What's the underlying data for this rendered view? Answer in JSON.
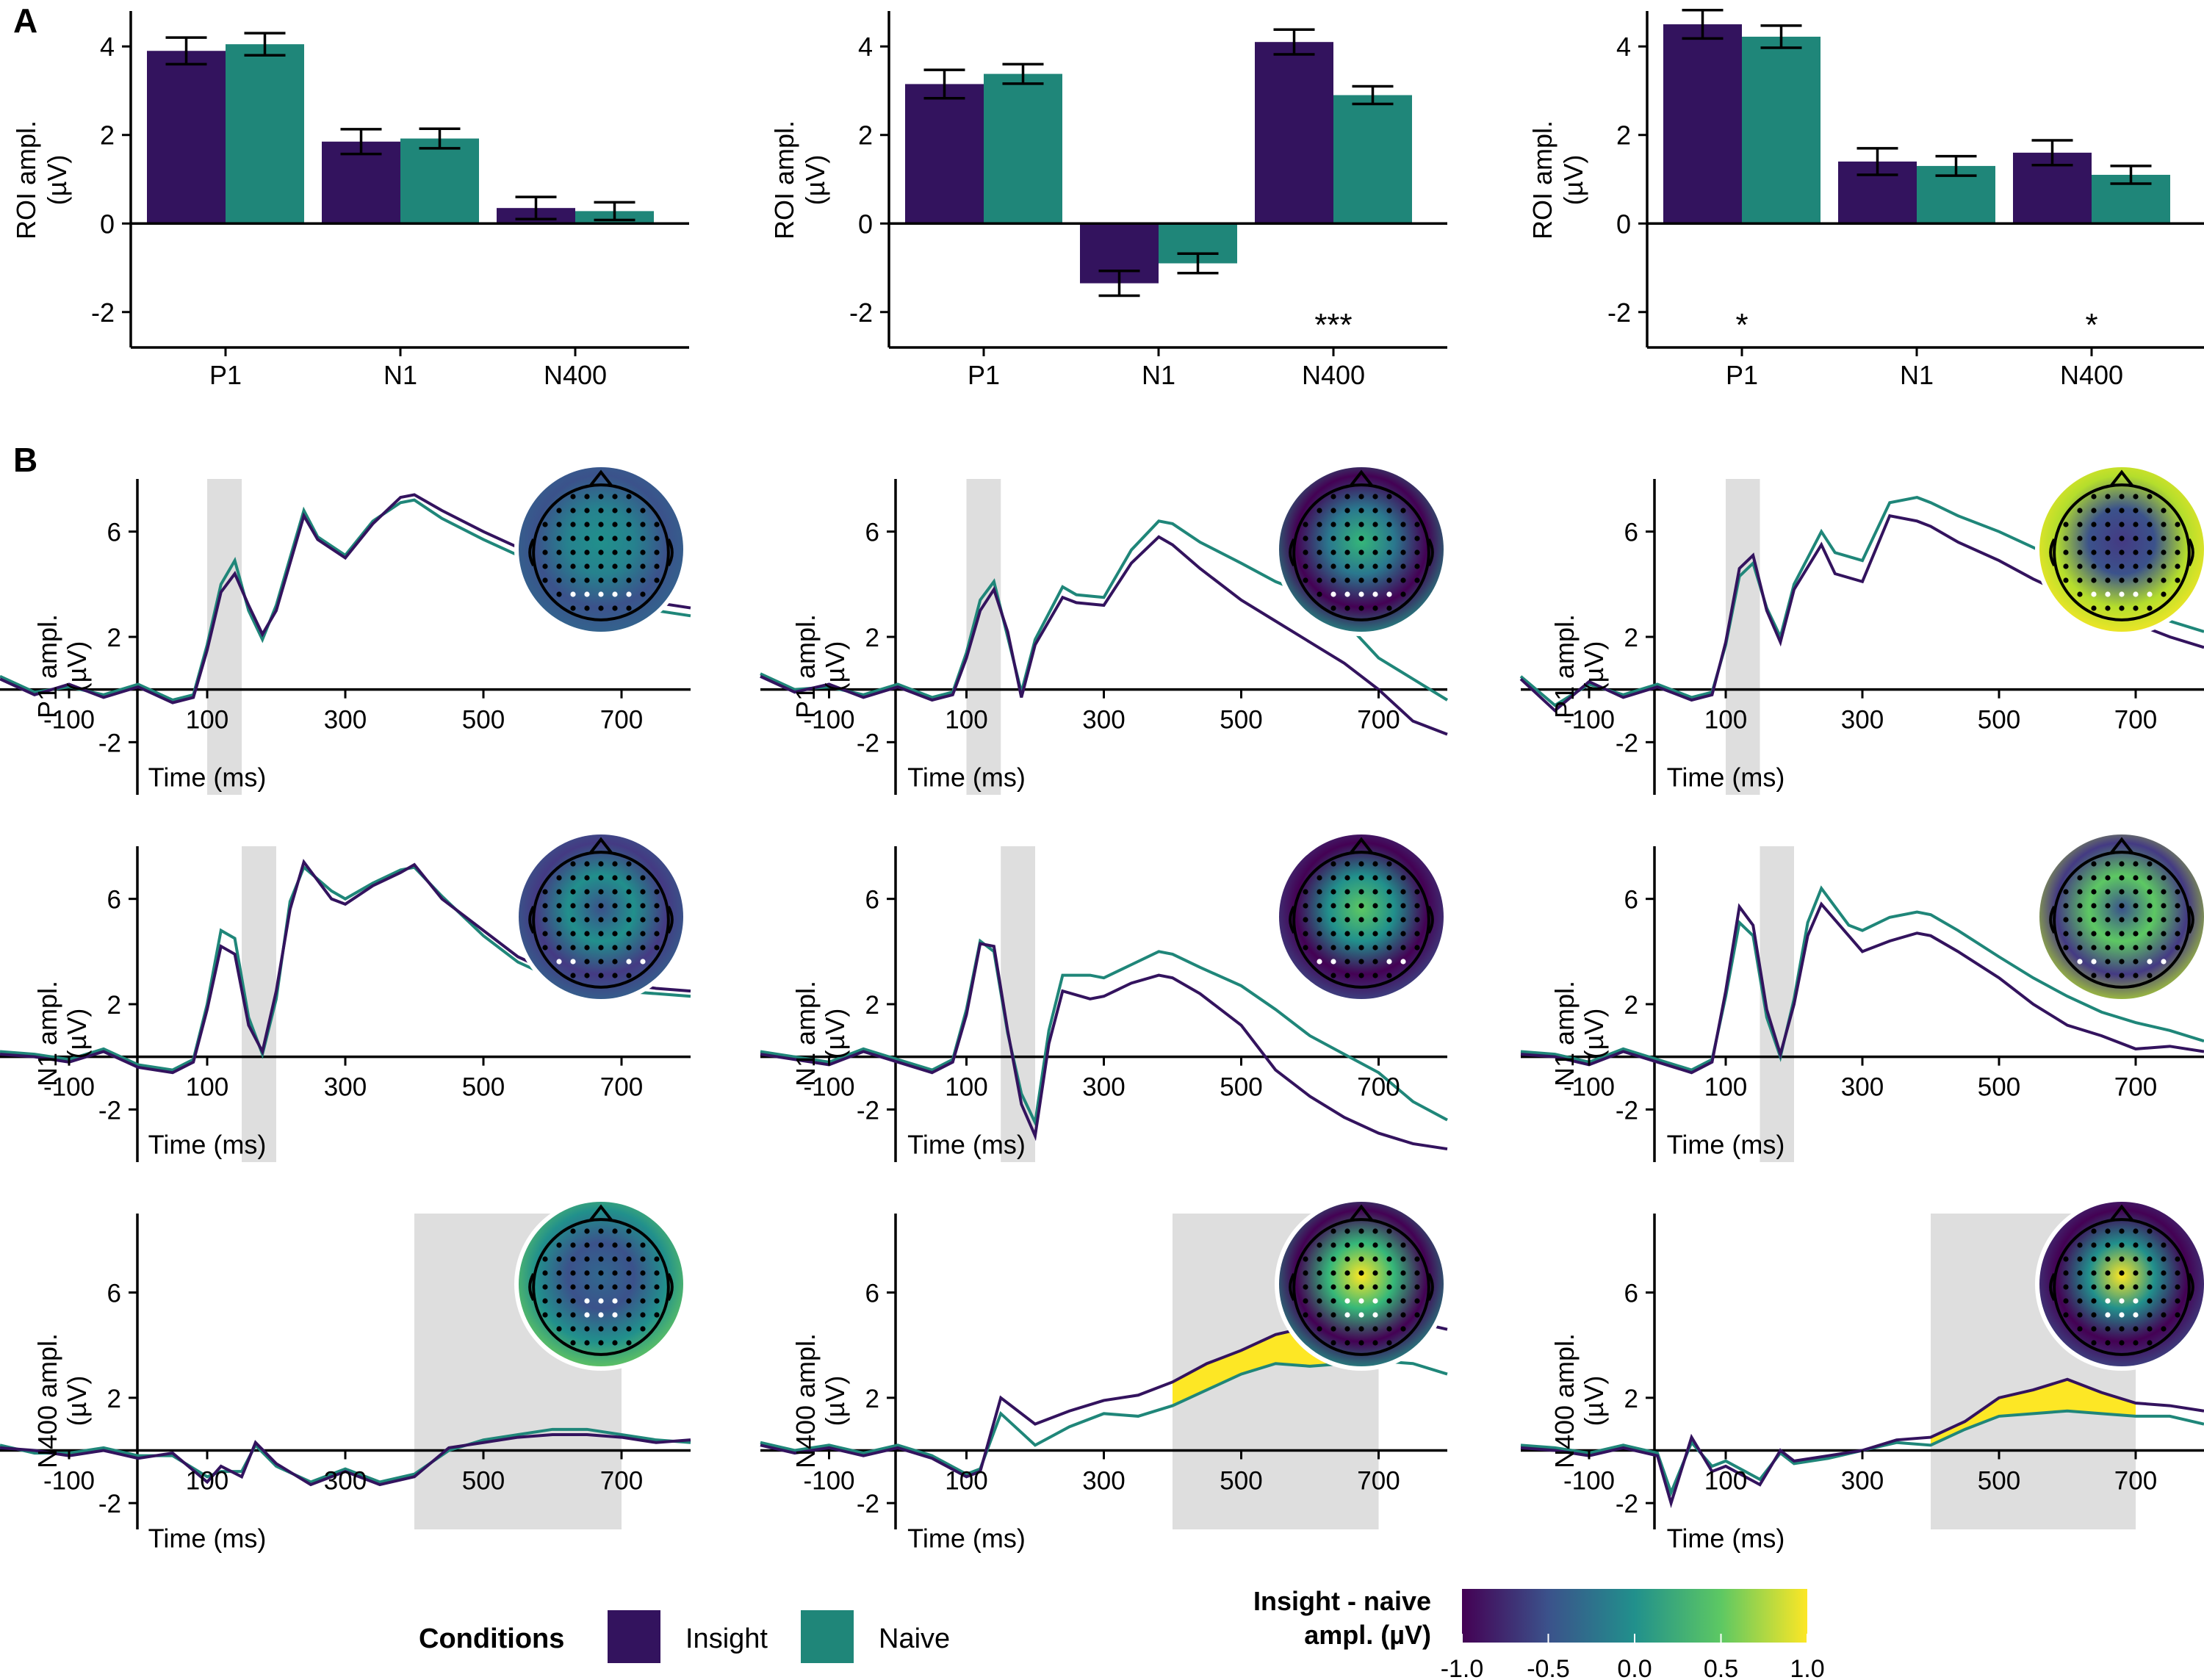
{
  "panel_labels": {
    "a": "A",
    "b": "B"
  },
  "colors": {
    "insight": "#33135E",
    "naive": "#1F8679",
    "shade": "#DEDEDE",
    "fill": "#FDE725"
  },
  "bar_axis": {
    "ylabel": "ROI ampl.",
    "yunit": "(µV)",
    "yticks": [
      "4",
      "2",
      "0",
      "-2"
    ]
  },
  "wave_axis": {
    "xlabel": "Time (ms)",
    "xticks": [
      "-100",
      "100",
      "300",
      "500",
      "700"
    ],
    "yticks": [
      "6",
      "2",
      "-2"
    ]
  },
  "chart_data": [
    {
      "type": "bar",
      "categories": [
        "P1",
        "N1",
        "N400"
      ],
      "ylim": [
        -2.8,
        4.8
      ],
      "series": [
        {
          "name": "Insight",
          "values": [
            3.9,
            1.85,
            0.35
          ],
          "errors": [
            0.3,
            0.28,
            0.25
          ]
        },
        {
          "name": "Naive",
          "values": [
            4.05,
            1.92,
            0.28
          ],
          "errors": [
            0.25,
            0.22,
            0.2
          ]
        }
      ],
      "annotations": [
        "",
        "",
        ""
      ]
    },
    {
      "type": "bar",
      "categories": [
        "P1",
        "N1",
        "N400"
      ],
      "ylim": [
        -2.8,
        4.8
      ],
      "series": [
        {
          "name": "Insight",
          "values": [
            3.15,
            -1.35,
            4.1
          ],
          "errors": [
            0.32,
            0.28,
            0.28
          ]
        },
        {
          "name": "Naive",
          "values": [
            3.38,
            -0.9,
            2.9
          ],
          "errors": [
            0.22,
            0.22,
            0.2
          ]
        }
      ],
      "annotations": [
        "",
        "",
        "***"
      ]
    },
    {
      "type": "bar",
      "categories": [
        "P1",
        "N1",
        "N400"
      ],
      "ylim": [
        -2.8,
        4.8
      ],
      "series": [
        {
          "name": "Insight",
          "values": [
            4.5,
            1.4,
            1.6
          ],
          "errors": [
            0.32,
            0.3,
            0.28
          ]
        },
        {
          "name": "Naive",
          "values": [
            4.22,
            1.3,
            1.1
          ],
          "errors": [
            0.25,
            0.22,
            0.2
          ]
        }
      ],
      "annotations": [
        "*",
        "",
        "*"
      ]
    },
    {
      "type": "line",
      "component": "P1",
      "ylabel": "P1 ampl.",
      "xlim": [
        -200,
        800
      ],
      "ylim": [
        -4,
        8
      ],
      "window": [
        100,
        150
      ],
      "x": [
        -200,
        -150,
        -100,
        -50,
        0,
        50,
        80,
        100,
        120,
        140,
        160,
        180,
        200,
        240,
        260,
        300,
        340,
        380,
        400,
        440,
        500,
        550,
        600,
        650,
        700,
        750,
        800
      ],
      "series": [
        {
          "name": "Insight",
          "values": [
            0.4,
            -0.2,
            0.2,
            -0.3,
            0.1,
            -0.5,
            -0.3,
            1.5,
            3.7,
            4.4,
            3.2,
            2.1,
            3.0,
            6.6,
            5.7,
            5.0,
            6.3,
            7.3,
            7.4,
            6.8,
            6.0,
            5.4,
            4.6,
            3.8,
            3.5,
            3.3,
            3.1
          ]
        },
        {
          "name": "Naive",
          "values": [
            0.5,
            -0.1,
            0.1,
            -0.2,
            0.2,
            -0.4,
            -0.2,
            1.7,
            4.0,
            4.9,
            3.0,
            1.9,
            3.2,
            6.8,
            5.8,
            5.1,
            6.4,
            7.1,
            7.2,
            6.5,
            5.7,
            5.1,
            4.3,
            3.5,
            3.3,
            3.0,
            2.8
          ]
        }
      ],
      "fill_region": null
    },
    {
      "type": "line",
      "component": "P1",
      "ylabel": "P1 ampl.",
      "xlim": [
        -200,
        800
      ],
      "ylim": [
        -4,
        8
      ],
      "window": [
        100,
        150
      ],
      "x": [
        -200,
        -150,
        -100,
        -50,
        0,
        50,
        80,
        100,
        120,
        140,
        160,
        180,
        200,
        240,
        260,
        300,
        340,
        380,
        400,
        440,
        500,
        550,
        600,
        650,
        700,
        750,
        800
      ],
      "series": [
        {
          "name": "Insight",
          "values": [
            0.5,
            -0.1,
            0.2,
            -0.3,
            0.1,
            -0.4,
            -0.2,
            1.2,
            3.0,
            3.8,
            2.2,
            -0.3,
            1.7,
            3.5,
            3.3,
            3.2,
            4.8,
            5.8,
            5.5,
            4.6,
            3.4,
            2.6,
            1.8,
            1.0,
            0.0,
            -1.2,
            -1.7
          ]
        },
        {
          "name": "Naive",
          "values": [
            0.6,
            0.0,
            0.1,
            -0.2,
            0.2,
            -0.3,
            -0.1,
            1.4,
            3.4,
            4.1,
            2.0,
            -0.1,
            1.9,
            3.9,
            3.6,
            3.5,
            5.3,
            6.4,
            6.3,
            5.6,
            4.8,
            4.1,
            3.6,
            2.6,
            1.2,
            0.4,
            -0.4
          ]
        }
      ],
      "fill_region": null
    },
    {
      "type": "line",
      "component": "P1",
      "ylabel": "P1 ampl.",
      "xlim": [
        -200,
        800
      ],
      "ylim": [
        -4,
        8
      ],
      "window": [
        100,
        150
      ],
      "x": [
        -200,
        -150,
        -100,
        -50,
        0,
        50,
        80,
        100,
        120,
        140,
        160,
        180,
        200,
        240,
        260,
        300,
        340,
        380,
        400,
        440,
        500,
        550,
        600,
        650,
        700,
        750,
        800
      ],
      "series": [
        {
          "name": "Insight",
          "values": [
            0.4,
            -0.8,
            0.3,
            -0.3,
            0.1,
            -0.4,
            -0.2,
            1.8,
            4.6,
            5.1,
            3.0,
            1.8,
            3.8,
            5.5,
            4.4,
            4.1,
            6.6,
            6.4,
            6.2,
            5.6,
            4.9,
            4.2,
            3.6,
            3.0,
            2.5,
            2.0,
            1.6
          ]
        },
        {
          "name": "Naive",
          "values": [
            0.5,
            -0.6,
            0.2,
            -0.2,
            0.2,
            -0.3,
            -0.1,
            1.7,
            4.3,
            4.8,
            3.1,
            2.0,
            4.0,
            6.0,
            5.2,
            4.9,
            7.1,
            7.3,
            7.1,
            6.6,
            6.0,
            5.4,
            4.8,
            4.2,
            3.4,
            2.6,
            2.2
          ]
        }
      ],
      "fill_region": null
    },
    {
      "type": "line",
      "component": "N1",
      "ylabel": "N1 ampl.",
      "xlim": [
        -200,
        800
      ],
      "ylim": [
        -4,
        8
      ],
      "window": [
        150,
        200
      ],
      "x": [
        -200,
        -150,
        -100,
        -50,
        0,
        50,
        80,
        100,
        120,
        140,
        160,
        180,
        200,
        220,
        240,
        280,
        300,
        340,
        380,
        400,
        440,
        500,
        550,
        600,
        650,
        700,
        750,
        800
      ],
      "series": [
        {
          "name": "Insight",
          "values": [
            0.1,
            0.0,
            -0.2,
            0.2,
            -0.4,
            -0.6,
            -0.2,
            1.8,
            4.2,
            3.9,
            1.2,
            0.2,
            2.5,
            5.6,
            7.4,
            6.0,
            5.8,
            6.5,
            7.0,
            7.3,
            6.0,
            4.8,
            3.8,
            3.2,
            2.9,
            2.8,
            2.6,
            2.5
          ]
        },
        {
          "name": "Naive",
          "values": [
            0.2,
            0.1,
            -0.1,
            0.3,
            -0.3,
            -0.5,
            -0.1,
            2.0,
            4.8,
            4.5,
            1.5,
            0.1,
            2.2,
            5.9,
            7.2,
            6.3,
            6.0,
            6.6,
            7.1,
            7.2,
            6.1,
            4.6,
            3.6,
            3.0,
            2.6,
            2.5,
            2.4,
            2.3
          ]
        }
      ],
      "fill_region": null
    },
    {
      "type": "line",
      "component": "N1",
      "ylabel": "N1 ampl.",
      "xlim": [
        -200,
        800
      ],
      "ylim": [
        -4,
        8
      ],
      "window": [
        150,
        200
      ],
      "x": [
        -200,
        -150,
        -100,
        -50,
        0,
        50,
        80,
        100,
        120,
        140,
        160,
        180,
        200,
        220,
        240,
        280,
        300,
        340,
        380,
        400,
        440,
        500,
        550,
        600,
        650,
        700,
        750,
        800
      ],
      "series": [
        {
          "name": "Insight",
          "values": [
            0.1,
            -0.1,
            -0.3,
            0.2,
            -0.2,
            -0.6,
            -0.2,
            1.6,
            4.3,
            4.2,
            1.0,
            -1.8,
            -3.0,
            0.5,
            2.5,
            2.2,
            2.3,
            2.8,
            3.1,
            3.0,
            2.4,
            1.2,
            -0.5,
            -1.5,
            -2.3,
            -2.9,
            -3.3,
            -3.5
          ]
        },
        {
          "name": "Naive",
          "values": [
            0.2,
            0.0,
            -0.2,
            0.3,
            -0.1,
            -0.5,
            -0.1,
            1.8,
            4.4,
            4.0,
            0.9,
            -1.4,
            -2.5,
            1.0,
            3.1,
            3.1,
            3.0,
            3.5,
            4.0,
            3.9,
            3.4,
            2.7,
            1.8,
            0.8,
            0.1,
            -0.6,
            -1.7,
            -2.4
          ]
        }
      ],
      "fill_region": null
    },
    {
      "type": "line",
      "component": "N1",
      "ylabel": "N1 ampl.",
      "xlim": [
        -200,
        800
      ],
      "ylim": [
        -4,
        8
      ],
      "window": [
        150,
        200
      ],
      "x": [
        -200,
        -150,
        -100,
        -50,
        0,
        50,
        80,
        100,
        120,
        140,
        160,
        180,
        200,
        220,
        240,
        280,
        300,
        340,
        380,
        400,
        440,
        500,
        550,
        600,
        650,
        700,
        750,
        800
      ],
      "series": [
        {
          "name": "Insight",
          "values": [
            0.1,
            0.0,
            -0.3,
            0.2,
            -0.2,
            -0.6,
            -0.2,
            2.5,
            5.7,
            5.0,
            1.8,
            0.1,
            2.0,
            4.6,
            5.8,
            4.6,
            4.0,
            4.4,
            4.7,
            4.6,
            4.0,
            3.0,
            2.0,
            1.2,
            0.8,
            0.3,
            0.4,
            0.2
          ]
        },
        {
          "name": "Naive",
          "values": [
            0.2,
            0.1,
            -0.2,
            0.3,
            -0.1,
            -0.5,
            -0.1,
            2.3,
            5.1,
            4.6,
            1.5,
            0.0,
            2.2,
            5.1,
            6.4,
            5.0,
            4.8,
            5.3,
            5.5,
            5.4,
            4.8,
            3.8,
            3.0,
            2.3,
            1.7,
            1.3,
            1.0,
            0.6
          ]
        }
      ],
      "fill_region": null
    },
    {
      "type": "line",
      "component": "N400",
      "ylabel": "N400 ampl.",
      "xlim": [
        -200,
        800
      ],
      "ylim": [
        -3,
        9
      ],
      "window": [
        400,
        700
      ],
      "x": [
        -200,
        -150,
        -100,
        -50,
        0,
        50,
        100,
        120,
        150,
        170,
        200,
        250,
        300,
        350,
        400,
        450,
        500,
        550,
        600,
        650,
        700,
        750,
        800
      ],
      "series": [
        {
          "name": "Insight",
          "values": [
            0.1,
            0.0,
            -0.2,
            0.0,
            -0.3,
            -0.1,
            -1.2,
            -0.6,
            -1.0,
            0.3,
            -0.5,
            -1.3,
            -0.8,
            -1.3,
            -1.0,
            0.1,
            0.3,
            0.5,
            0.6,
            0.6,
            0.5,
            0.3,
            0.4
          ]
        },
        {
          "name": "Naive",
          "values": [
            0.2,
            -0.1,
            -0.1,
            0.1,
            -0.2,
            -0.2,
            -1.0,
            -0.8,
            -0.8,
            0.2,
            -0.6,
            -1.2,
            -0.7,
            -1.2,
            -0.9,
            0.0,
            0.4,
            0.6,
            0.8,
            0.8,
            0.6,
            0.4,
            0.3
          ]
        }
      ],
      "fill_region": null
    },
    {
      "type": "line",
      "component": "N400",
      "ylabel": "N400 ampl.",
      "xlim": [
        -200,
        800
      ],
      "ylim": [
        -3,
        9
      ],
      "window": [
        400,
        700
      ],
      "x": [
        -200,
        -150,
        -100,
        -50,
        0,
        50,
        100,
        120,
        150,
        200,
        250,
        300,
        350,
        400,
        450,
        500,
        550,
        600,
        650,
        700,
        750,
        800
      ],
      "series": [
        {
          "name": "Insight",
          "values": [
            0.2,
            -0.1,
            0.1,
            -0.2,
            0.1,
            -0.3,
            -1.0,
            -0.8,
            2.0,
            1.0,
            1.5,
            1.9,
            2.1,
            2.6,
            3.3,
            3.8,
            4.4,
            4.7,
            5.0,
            4.8,
            4.9,
            4.6
          ]
        },
        {
          "name": "Naive",
          "values": [
            0.3,
            0.0,
            0.2,
            -0.1,
            0.2,
            -0.2,
            -0.9,
            -0.7,
            1.4,
            0.2,
            0.9,
            1.4,
            1.3,
            1.7,
            2.3,
            2.9,
            3.3,
            3.2,
            3.3,
            3.4,
            3.3,
            2.9
          ]
        }
      ],
      "fill_region": [
        400,
        700
      ]
    },
    {
      "type": "line",
      "component": "N400",
      "ylabel": "N400 ampl.",
      "xlim": [
        -200,
        800
      ],
      "ylim": [
        -3,
        9
      ],
      "window": [
        400,
        700
      ],
      "x": [
        -200,
        -150,
        -100,
        -50,
        0,
        20,
        50,
        80,
        100,
        150,
        180,
        200,
        250,
        300,
        350,
        400,
        450,
        500,
        550,
        600,
        650,
        700,
        750,
        800
      ],
      "series": [
        {
          "name": "Insight",
          "values": [
            0.1,
            0.0,
            -0.2,
            0.1,
            -0.2,
            -2.0,
            0.5,
            -0.8,
            -0.6,
            -1.3,
            0.0,
            -0.4,
            -0.2,
            0.0,
            0.4,
            0.5,
            1.1,
            2.0,
            2.3,
            2.7,
            2.2,
            1.8,
            1.7,
            1.5
          ]
        },
        {
          "name": "Naive",
          "values": [
            0.2,
            0.1,
            -0.1,
            0.2,
            -0.1,
            -1.6,
            0.3,
            -0.6,
            -0.4,
            -1.1,
            -0.1,
            -0.5,
            -0.3,
            0.0,
            0.3,
            0.2,
            0.8,
            1.3,
            1.4,
            1.5,
            1.4,
            1.3,
            1.3,
            1.0
          ]
        }
      ],
      "fill_region": [
        400,
        700
      ]
    }
  ],
  "topomaps": [
    {
      "palette": [
        "#21908C",
        "#26828E",
        "#3B528B",
        "#31688E"
      ],
      "roi": "posterior"
    },
    {
      "palette": [
        "#35B779",
        "#2A788E",
        "#440154",
        "#1F9E89"
      ],
      "roi": "posterior"
    },
    {
      "palette": [
        "#443A83",
        "#3B528B",
        "#B4DE2C",
        "#FDE725"
      ],
      "roi": "posterior"
    },
    {
      "palette": [
        "#3B528B",
        "#21908C",
        "#443A83",
        "#31688E"
      ],
      "roi": "lateral"
    },
    {
      "palette": [
        "#5DC863",
        "#21908C",
        "#440154",
        "#3B528B"
      ],
      "roi": "lateral"
    },
    {
      "palette": [
        "#3B528B",
        "#5DC863",
        "#443A83",
        "#B4DE2C"
      ],
      "roi": "lateral"
    },
    {
      "palette": [
        "#31688E",
        "#3B528B",
        "#21908C",
        "#6ECE58"
      ],
      "roi": "central"
    },
    {
      "palette": [
        "#FDE725",
        "#35B779",
        "#440154",
        "#1F9E89"
      ],
      "roi": "central"
    },
    {
      "palette": [
        "#FDE725",
        "#21908C",
        "#440154",
        "#3B528B"
      ],
      "roi": "central"
    }
  ],
  "legend": {
    "title": "Conditions",
    "items": [
      {
        "label": "Insight",
        "color": "#33135E"
      },
      {
        "label": "Naive",
        "color": "#1F8679"
      }
    ],
    "colorbar_title_line1": "Insight - naive",
    "colorbar_title_line2": "ampl. (µV)",
    "colorbar_ticks": [
      "-1.0",
      "-0.5",
      "0.0",
      "0.5",
      "1.0"
    ],
    "colorbar_stops": [
      "#440154",
      "#3B528B",
      "#21908C",
      "#5DC863",
      "#FDE725"
    ]
  }
}
